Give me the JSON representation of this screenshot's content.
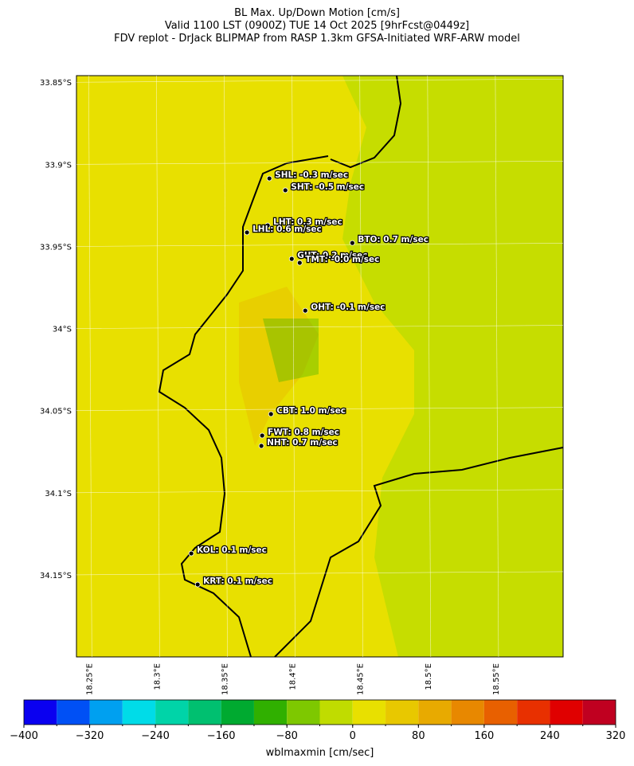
{
  "map": {
    "title": [
      "BL Max. Up/Down Motion [cm/s]",
      "Valid 1100 LST (0900Z) TUE 14 Oct 2025 [9hrFcst@0449z]",
      "FDV replot - DrJack BLIPMAP from RASP 1.3km GFSA-Initiated WRF-ARW model"
    ],
    "xlim": [
      18.241,
      18.6
    ],
    "ylim": [
      -34.2,
      -33.846
    ],
    "xticks": [
      {
        "value": 18.25,
        "label": "18.25°E"
      },
      {
        "value": 18.3,
        "label": "18.3°E"
      },
      {
        "value": 18.35,
        "label": "18.35°E"
      },
      {
        "value": 18.4,
        "label": "18.4°E"
      },
      {
        "value": 18.45,
        "label": "18.45°E"
      },
      {
        "value": 18.5,
        "label": "18.5°E"
      },
      {
        "value": 18.55,
        "label": "18.55°E"
      }
    ],
    "yticks": [
      {
        "value": -33.85,
        "label": "33.85°S"
      },
      {
        "value": -33.9,
        "label": "33.9°S"
      },
      {
        "value": -33.95,
        "label": "33.95°S"
      },
      {
        "value": -34.0,
        "label": "34°S"
      },
      {
        "value": -34.05,
        "label": "34.05°S"
      },
      {
        "value": -34.1,
        "label": "34.1°S"
      },
      {
        "value": -34.15,
        "label": "34.15°S"
      }
    ],
    "stations": [
      {
        "label": "SHL: -0.3 m/sec",
        "lon": 18.3833,
        "lat": -33.9086
      },
      {
        "label": "SHT: -0.5 m/sec",
        "lon": 18.3951,
        "lat": -33.9158
      },
      {
        "label": "LHT: 0.3 m/sec",
        "lon": 18.3821,
        "lat": -33.9372
      },
      {
        "label": "LHL: 0.6 m/sec",
        "lon": 18.3668,
        "lat": -33.9415
      },
      {
        "label": "BTO: 0.7 m/sec",
        "lon": 18.4445,
        "lat": -33.9479
      },
      {
        "label": "GUT: 0.2 m/sec",
        "lon": 18.3998,
        "lat": -33.9576
      },
      {
        "label": "TMT: -0.0 m/sec",
        "lon": 18.4057,
        "lat": -33.96
      },
      {
        "label": "OHT: -0.1 m/sec",
        "lon": 18.4098,
        "lat": -33.9891
      },
      {
        "label": "CBT: 1.0 m/sec",
        "lon": 18.3845,
        "lat": -34.0521
      },
      {
        "label": "FWT: 0.8 m/sec",
        "lon": 18.378,
        "lat": -34.0652
      },
      {
        "label": "NHT: 0.7 m/sec",
        "lon": 18.3774,
        "lat": -34.0715
      },
      {
        "label": "KOL: 0.1 m/sec",
        "lon": 18.3257,
        "lat": -34.137
      },
      {
        "label": "KRT: 0.1 m/sec",
        "lon": 18.3304,
        "lat": -34.1559
      }
    ],
    "colorbar": {
      "label": "wblmaxmin [cm/sec]",
      "bounds": [
        -400,
        -360,
        -320,
        -280,
        -240,
        -200,
        -160,
        -120,
        -80,
        -40,
        0,
        40,
        80,
        120,
        160,
        200,
        240,
        280,
        320
      ],
      "colors": [
        "#0a00f0",
        "#0050f5",
        "#00a0f0",
        "#00dce8",
        "#00d4a8",
        "#00c070",
        "#00aa30",
        "#30b000",
        "#7ec800",
        "#c0dc00",
        "#e8e000",
        "#e8c800",
        "#e8aa00",
        "#e88800",
        "#e86000",
        "#e83000",
        "#e00000",
        "#c00020"
      ],
      "ticks": [
        {
          "value": -400,
          "label": "−400"
        },
        {
          "value": -320,
          "label": "−320"
        },
        {
          "value": -240,
          "label": "−240"
        },
        {
          "value": -160,
          "label": "−160"
        },
        {
          "value": -80,
          "label": "−80"
        },
        0,
        80,
        160,
        240,
        320
      ]
    }
  }
}
